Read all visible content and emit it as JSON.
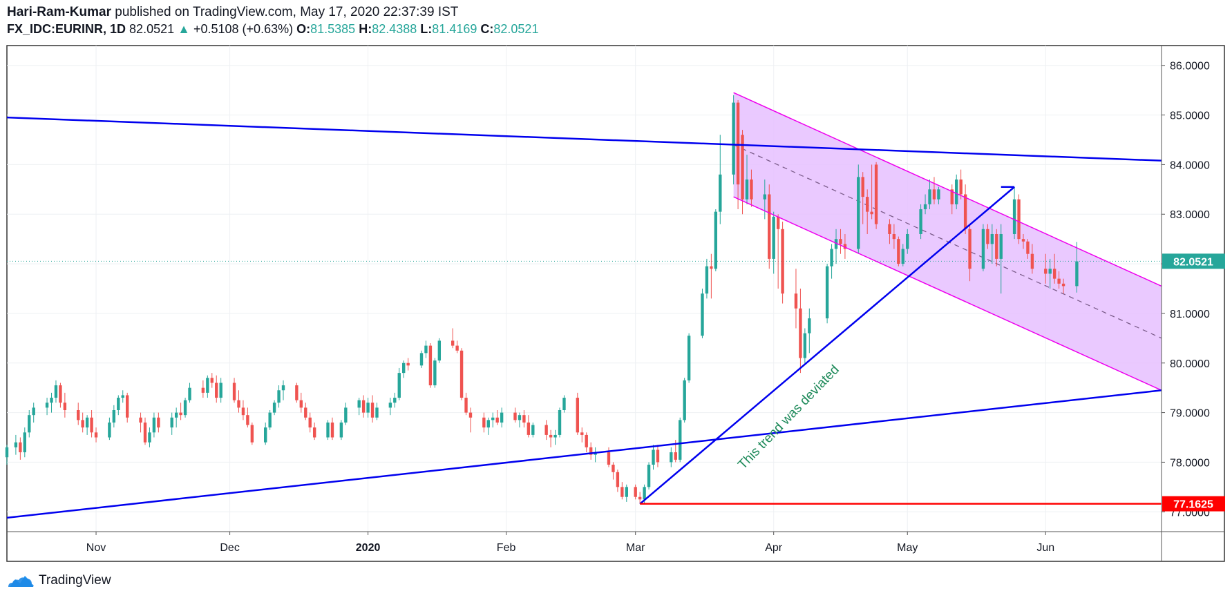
{
  "header": {
    "author": "Hari-Ram-Kumar",
    "published": " published on TradingView.com, May 17, 2020 22:37:39 IST",
    "symbol": "FX_IDC:EURINR, 1D",
    "last": "82.0521",
    "change": "+0.5108 (+0.63%)",
    "o_label": "O:",
    "o_value": "81.5385",
    "h_label": "H:",
    "h_value": "82.4388",
    "l_label": "L:",
    "l_value": "81.4169",
    "c_label": "C:",
    "c_value": "82.0521"
  },
  "footer": {
    "brand": "TradingView",
    "logo_icon": "tradingview-cloud-icon"
  },
  "colors": {
    "up": "#26a69a",
    "down": "#ef5350",
    "trendline": "#0000ee",
    "channel": "#ee00ee",
    "channel_fill": "#e6c0ff",
    "support": "#ff0000",
    "annotation": "#1e8a5a"
  },
  "chart_data": {
    "type": "candlestick",
    "y_axis": {
      "min": 76.6,
      "max": 86.4,
      "ticks": [
        "86.0000",
        "85.0000",
        "84.0000",
        "83.0000",
        "82.0000",
        "81.0000",
        "80.0000",
        "79.0000",
        "78.0000",
        "77.0000"
      ]
    },
    "x_axis": {
      "start": "2019-10-12",
      "end": "2020-06-27",
      "ticks": [
        {
          "label": "Nov",
          "date": "2019-11-01"
        },
        {
          "label": "Dec",
          "date": "2019-12-01"
        },
        {
          "label": "2020",
          "date": "2020-01-01",
          "bold": true
        },
        {
          "label": "Feb",
          "date": "2020-02-01"
        },
        {
          "label": "Mar",
          "date": "2020-03-01"
        },
        {
          "label": "Apr",
          "date": "2020-04-01"
        },
        {
          "label": "May",
          "date": "2020-05-01"
        },
        {
          "label": "Jun",
          "date": "2020-06-01"
        }
      ]
    },
    "price_labels": [
      {
        "value": 82.0521,
        "text": "82.0521",
        "color": "#26a69a"
      },
      {
        "value": 77.1625,
        "text": "77.1625",
        "color": "#ff0000"
      }
    ],
    "candles": [
      [
        "2019-10-12",
        78.1,
        78.35,
        77.95,
        78.3
      ],
      [
        "2019-10-14",
        78.3,
        78.55,
        78.15,
        78.4
      ],
      [
        "2019-10-15",
        78.4,
        78.5,
        78.05,
        78.2
      ],
      [
        "2019-10-16",
        78.2,
        78.7,
        78.1,
        78.6
      ],
      [
        "2019-10-17",
        78.6,
        79.05,
        78.5,
        78.95
      ],
      [
        "2019-10-18",
        78.95,
        79.2,
        78.8,
        79.1
      ],
      [
        "2019-10-21",
        79.1,
        79.3,
        78.95,
        79.2
      ],
      [
        "2019-10-22",
        79.2,
        79.4,
        79.0,
        79.3
      ],
      [
        "2019-10-23",
        79.3,
        79.65,
        79.2,
        79.55
      ],
      [
        "2019-10-24",
        79.55,
        79.6,
        79.1,
        79.2
      ],
      [
        "2019-10-25",
        79.2,
        79.4,
        78.9,
        79.05
      ],
      [
        "2019-10-28",
        79.05,
        79.2,
        78.75,
        78.85
      ],
      [
        "2019-10-29",
        78.85,
        79.0,
        78.6,
        78.7
      ],
      [
        "2019-10-30",
        78.7,
        78.95,
        78.55,
        78.9
      ],
      [
        "2019-10-31",
        78.9,
        79.05,
        78.5,
        78.6
      ],
      [
        "2019-11-01",
        78.6,
        78.7,
        78.4,
        78.5
      ],
      [
        "2019-11-04",
        78.5,
        78.9,
        78.45,
        78.8
      ],
      [
        "2019-11-05",
        78.8,
        79.15,
        78.7,
        79.05
      ],
      [
        "2019-11-06",
        79.05,
        79.35,
        78.95,
        79.3
      ],
      [
        "2019-11-07",
        79.3,
        79.45,
        79.2,
        79.35
      ],
      [
        "2019-11-08",
        79.35,
        79.4,
        78.8,
        78.9
      ],
      [
        "2019-11-11",
        78.9,
        79.0,
        78.6,
        78.8
      ],
      [
        "2019-11-12",
        78.8,
        78.9,
        78.35,
        78.4
      ],
      [
        "2019-11-13",
        78.4,
        78.7,
        78.3,
        78.6
      ],
      [
        "2019-11-14",
        78.6,
        79.0,
        78.5,
        78.9
      ],
      [
        "2019-11-15",
        78.9,
        79.0,
        78.6,
        78.7
      ],
      [
        "2019-11-18",
        78.7,
        79.0,
        78.55,
        78.9
      ],
      [
        "2019-11-19",
        78.9,
        79.1,
        78.7,
        79.0
      ],
      [
        "2019-11-20",
        79.0,
        79.2,
        78.85,
        78.95
      ],
      [
        "2019-11-21",
        78.95,
        79.3,
        78.9,
        79.25
      ],
      [
        "2019-11-22",
        79.25,
        79.6,
        79.2,
        79.5
      ],
      [
        "2019-11-25",
        79.5,
        79.65,
        79.3,
        79.4
      ],
      [
        "2019-11-26",
        79.4,
        79.75,
        79.3,
        79.7
      ],
      [
        "2019-11-27",
        79.7,
        79.8,
        79.5,
        79.6
      ],
      [
        "2019-11-28",
        79.6,
        79.75,
        79.2,
        79.3
      ],
      [
        "2019-11-29",
        79.3,
        79.7,
        79.2,
        79.6
      ],
      [
        "2019-12-02",
        79.6,
        79.7,
        79.2,
        79.25
      ],
      [
        "2019-12-03",
        79.25,
        79.45,
        79.0,
        79.1
      ],
      [
        "2019-12-04",
        79.1,
        79.25,
        78.85,
        78.95
      ],
      [
        "2019-12-05",
        78.95,
        79.1,
        78.7,
        78.75
      ],
      [
        "2019-12-06",
        78.75,
        78.8,
        78.35,
        78.4
      ],
      [
        "2019-12-09",
        78.4,
        78.8,
        78.35,
        78.7
      ],
      [
        "2019-12-10",
        78.7,
        79.05,
        78.65,
        79.0
      ],
      [
        "2019-12-11",
        79.0,
        79.25,
        78.95,
        79.2
      ],
      [
        "2019-12-12",
        79.2,
        79.55,
        79.1,
        79.45
      ],
      [
        "2019-12-13",
        79.45,
        79.65,
        79.25,
        79.55
      ],
      [
        "2019-12-16",
        79.55,
        79.6,
        79.2,
        79.25
      ],
      [
        "2019-12-17",
        79.25,
        79.4,
        79.0,
        79.1
      ],
      [
        "2019-12-18",
        79.1,
        79.2,
        78.85,
        78.9
      ],
      [
        "2019-12-19",
        78.9,
        79.0,
        78.6,
        78.7
      ],
      [
        "2019-12-20",
        78.7,
        78.8,
        78.45,
        78.5
      ],
      [
        "2019-12-23",
        78.5,
        78.85,
        78.45,
        78.8
      ],
      [
        "2019-12-24",
        78.8,
        78.9,
        78.45,
        78.5
      ],
      [
        "2019-12-26",
        78.5,
        78.85,
        78.45,
        78.8
      ],
      [
        "2019-12-27",
        78.8,
        79.2,
        78.75,
        79.1
      ],
      [
        "2019-12-30",
        79.1,
        79.3,
        78.95,
        79.25
      ],
      [
        "2019-12-31",
        79.25,
        79.35,
        78.9,
        79.0
      ],
      [
        "2020-01-01",
        79.0,
        79.3,
        78.9,
        79.2
      ],
      [
        "2020-01-02",
        79.2,
        79.35,
        78.8,
        78.9
      ],
      [
        "2020-01-03",
        78.9,
        79.2,
        78.85,
        79.1
      ],
      [
        "2020-01-06",
        79.1,
        79.3,
        78.95,
        79.2
      ],
      [
        "2020-01-07",
        79.2,
        79.4,
        79.1,
        79.3
      ],
      [
        "2020-01-08",
        79.3,
        79.9,
        79.25,
        79.8
      ],
      [
        "2020-01-09",
        79.8,
        80.05,
        79.7,
        80.0
      ],
      [
        "2020-01-10",
        80.0,
        80.1,
        79.85,
        79.95
      ],
      [
        "2020-01-13",
        79.95,
        80.25,
        79.9,
        80.2
      ],
      [
        "2020-01-14",
        80.2,
        80.45,
        80.1,
        80.35
      ],
      [
        "2020-01-15",
        80.35,
        80.4,
        79.5,
        79.55
      ],
      [
        "2020-01-16",
        79.55,
        80.1,
        79.5,
        80.05
      ],
      [
        "2020-01-17",
        80.05,
        80.5,
        80.0,
        80.45
      ],
      [
        "2020-01-20",
        80.45,
        80.7,
        80.3,
        80.35
      ],
      [
        "2020-01-21",
        80.35,
        80.45,
        80.2,
        80.25
      ],
      [
        "2020-01-22",
        80.25,
        80.3,
        79.25,
        79.3
      ],
      [
        "2020-01-23",
        79.3,
        79.4,
        78.95,
        79.0
      ],
      [
        "2020-01-24",
        79.0,
        79.1,
        78.6,
        78.9
      ],
      [
        "2020-01-27",
        78.9,
        79.0,
        78.6,
        78.7
      ],
      [
        "2020-01-28",
        78.7,
        78.9,
        78.55,
        78.85
      ],
      [
        "2020-01-29",
        78.85,
        79.0,
        78.7,
        78.9
      ],
      [
        "2020-01-30",
        78.9,
        79.05,
        78.75,
        78.8
      ],
      [
        "2020-01-31",
        78.8,
        79.1,
        78.7,
        79.0
      ],
      [
        "2020-02-03",
        79.0,
        79.1,
        78.8,
        78.85
      ],
      [
        "2020-02-04",
        78.85,
        79.0,
        78.7,
        78.95
      ],
      [
        "2020-02-05",
        78.95,
        79.05,
        78.7,
        78.8
      ],
      [
        "2020-02-06",
        78.8,
        78.95,
        78.5,
        78.55
      ],
      [
        "2020-02-07",
        78.55,
        78.8,
        78.5,
        78.75
      ],
      [
        "2020-02-10",
        78.75,
        78.85,
        78.45,
        78.55
      ],
      [
        "2020-02-11",
        78.55,
        78.65,
        78.3,
        78.5
      ],
      [
        "2020-02-12",
        78.5,
        78.65,
        78.35,
        78.55
      ],
      [
        "2020-02-13",
        78.55,
        79.1,
        78.5,
        79.05
      ],
      [
        "2020-02-14",
        79.05,
        79.35,
        79.0,
        79.3
      ],
      [
        "2020-02-17",
        79.3,
        79.4,
        78.55,
        78.6
      ],
      [
        "2020-02-18",
        78.6,
        78.7,
        78.4,
        78.55
      ],
      [
        "2020-02-19",
        78.55,
        78.6,
        78.2,
        78.3
      ],
      [
        "2020-02-20",
        78.3,
        78.4,
        78.05,
        78.15
      ],
      [
        "2020-02-21",
        78.15,
        78.3,
        78.0,
        78.2
      ],
      [
        "2020-02-24",
        78.2,
        78.3,
        77.9,
        77.95
      ],
      [
        "2020-02-25",
        77.95,
        78.0,
        77.65,
        77.8
      ],
      [
        "2020-02-26",
        77.8,
        77.85,
        77.4,
        77.5
      ],
      [
        "2020-02-27",
        77.5,
        77.6,
        77.25,
        77.3
      ],
      [
        "2020-02-28",
        77.3,
        77.55,
        77.2,
        77.5
      ],
      [
        "2020-03-01",
        77.5,
        77.55,
        77.25,
        77.3
      ],
      [
        "2020-03-02",
        77.3,
        77.4,
        77.16,
        77.25
      ],
      [
        "2020-03-03",
        77.25,
        77.55,
        77.16,
        77.5
      ],
      [
        "2020-03-04",
        77.5,
        78.0,
        77.45,
        77.95
      ],
      [
        "2020-03-05",
        77.95,
        78.35,
        77.85,
        78.25
      ],
      [
        "2020-03-06",
        78.25,
        78.35,
        77.9,
        78.0
      ],
      [
        "2020-03-09",
        78.0,
        78.3,
        77.9,
        78.2
      ],
      [
        "2020-03-10",
        78.2,
        78.45,
        78.0,
        78.05
      ],
      [
        "2020-03-11",
        78.05,
        78.9,
        78.0,
        78.85
      ],
      [
        "2020-03-12",
        78.85,
        79.7,
        78.8,
        79.65
      ],
      [
        "2020-03-13",
        79.65,
        80.6,
        79.6,
        80.55
      ],
      [
        "2020-03-16",
        80.55,
        81.5,
        80.5,
        81.4
      ],
      [
        "2020-03-17",
        81.4,
        82.1,
        81.3,
        81.95
      ],
      [
        "2020-03-18",
        81.95,
        82.2,
        81.3,
        81.9
      ],
      [
        "2020-03-19",
        81.9,
        83.1,
        81.85,
        83.05
      ],
      [
        "2020-03-20",
        83.05,
        84.6,
        82.8,
        83.8
      ],
      [
        "2020-03-23",
        83.8,
        85.4,
        83.6,
        85.25
      ],
      [
        "2020-03-24",
        85.25,
        85.3,
        83.1,
        83.6
      ],
      [
        "2020-03-25",
        84.6,
        84.7,
        83.0,
        83.3
      ],
      [
        "2020-03-26",
        83.3,
        84.2,
        83.2,
        83.7
      ],
      [
        "2020-03-27",
        83.7,
        83.9,
        83.15,
        83.3
      ],
      [
        "2020-03-30",
        83.3,
        83.7,
        82.9,
        83.4
      ],
      [
        "2020-03-31",
        83.4,
        83.6,
        81.9,
        82.1
      ],
      [
        "2020-04-01",
        82.1,
        83.05,
        81.8,
        82.95
      ],
      [
        "2020-04-02",
        82.95,
        83.0,
        81.5,
        82.7
      ],
      [
        "2020-04-03",
        82.7,
        82.85,
        81.2,
        81.4
      ],
      [
        "2020-04-06",
        81.4,
        81.9,
        80.7,
        81.1
      ],
      [
        "2020-04-07",
        81.1,
        81.5,
        79.8,
        80.1
      ],
      [
        "2020-04-08",
        80.1,
        80.7,
        80.0,
        80.6
      ],
      [
        "2020-04-09",
        80.6,
        81.1,
        80.2,
        80.9
      ],
      [
        "2020-04-13",
        80.9,
        82.0,
        80.8,
        81.95
      ],
      [
        "2020-04-14",
        81.95,
        82.4,
        81.7,
        82.3
      ],
      [
        "2020-04-15",
        82.3,
        82.7,
        82.0,
        82.5
      ],
      [
        "2020-04-16",
        82.5,
        82.7,
        82.2,
        82.4
      ],
      [
        "2020-04-17",
        82.4,
        82.6,
        82.1,
        82.3
      ],
      [
        "2020-04-20",
        82.3,
        84.0,
        82.2,
        83.75
      ],
      [
        "2020-04-21",
        83.75,
        83.85,
        82.8,
        83.35
      ],
      [
        "2020-04-22",
        83.35,
        83.5,
        82.6,
        83.05
      ],
      [
        "2020-04-23",
        83.05,
        84.0,
        82.9,
        83.0
      ],
      [
        "2020-04-24",
        84.0,
        84.05,
        82.7,
        82.8
      ],
      [
        "2020-04-27",
        82.8,
        82.9,
        82.4,
        82.6
      ],
      [
        "2020-04-28",
        82.6,
        82.8,
        82.3,
        82.5
      ],
      [
        "2020-04-29",
        82.5,
        82.55,
        81.95,
        82.0
      ],
      [
        "2020-04-30",
        82.0,
        82.4,
        81.95,
        82.3
      ],
      [
        "2020-05-01",
        82.3,
        82.7,
        82.2,
        82.6
      ],
      [
        "2020-05-04",
        82.6,
        83.2,
        82.5,
        83.1
      ],
      [
        "2020-05-05",
        83.1,
        83.4,
        83.0,
        83.2
      ],
      [
        "2020-05-06",
        83.2,
        83.7,
        83.1,
        83.5
      ],
      [
        "2020-05-07",
        83.5,
        83.75,
        83.2,
        83.3
      ],
      [
        "2020-05-08",
        83.3,
        83.55,
        83.2,
        83.5
      ],
      [
        "2020-05-11",
        83.5,
        83.6,
        83.0,
        83.2
      ],
      [
        "2020-05-12",
        83.2,
        83.8,
        83.1,
        83.7
      ],
      [
        "2020-05-13",
        83.7,
        83.9,
        83.3,
        83.4
      ],
      [
        "2020-05-14",
        83.4,
        83.6,
        82.6,
        82.7
      ],
      [
        "2020-05-15",
        82.7,
        82.8,
        81.65,
        81.9
      ],
      [
        "2020-05-18",
        81.9,
        82.8,
        81.85,
        82.7
      ],
      [
        "2020-05-19",
        82.7,
        82.8,
        82.3,
        82.4
      ],
      [
        "2020-05-20",
        82.4,
        82.8,
        82.0,
        82.6
      ],
      [
        "2020-05-21",
        82.6,
        82.7,
        81.95,
        82.1
      ],
      [
        "2020-05-22",
        82.1,
        82.8,
        81.4,
        82.6
      ],
      [
        "2020-05-25",
        82.6,
        83.55,
        82.5,
        83.3
      ],
      [
        "2020-05-26",
        83.3,
        83.4,
        82.4,
        82.5
      ],
      [
        "2020-05-27",
        82.5,
        82.6,
        82.3,
        82.45
      ],
      [
        "2020-05-28",
        82.45,
        82.5,
        82.1,
        82.2
      ],
      [
        "2020-05-29",
        82.2,
        82.4,
        81.8,
        81.9
      ],
      [
        "2020-06-01",
        81.9,
        82.2,
        81.6,
        81.8
      ],
      [
        "2020-06-02",
        81.8,
        82.1,
        81.5,
        81.9
      ],
      [
        "2020-06-03",
        81.9,
        82.2,
        81.6,
        81.7
      ],
      [
        "2020-06-04",
        81.7,
        81.85,
        81.5,
        81.6
      ],
      [
        "2020-06-05",
        81.6,
        81.7,
        81.4,
        81.55
      ],
      [
        "2020-06-08",
        81.55,
        82.44,
        81.42,
        82.05
      ]
    ],
    "drawings": {
      "resistance_line": {
        "from": [
          "2019-10-12",
          84.95
        ],
        "to": [
          "2020-06-27",
          84.08
        ]
      },
      "support_line": {
        "from": [
          "2019-10-12",
          76.88
        ],
        "to": [
          "2020-06-27",
          79.45
        ]
      },
      "uptrend_line": {
        "from": [
          "2020-03-02",
          77.16
        ],
        "to": [
          "2020-05-25",
          83.55
        ]
      },
      "uptrend_cap": {
        "from": [
          "2020-05-22",
          83.55
        ],
        "to": [
          "2020-05-25",
          83.55
        ]
      },
      "horizontal_support": {
        "from": [
          "2020-03-02",
          77.1625
        ],
        "to": [
          "2020-06-27",
          77.1625
        ]
      },
      "channel_upper": {
        "from": [
          "2020-03-23",
          85.45
        ],
        "to": [
          "2020-06-27",
          81.55
        ]
      },
      "channel_lower": {
        "from": [
          "2020-03-23",
          83.35
        ],
        "to": [
          "2020-06-27",
          79.45
        ]
      },
      "channel_mid": {
        "from": [
          "2020-03-23",
          84.4
        ],
        "to": [
          "2020-06-27",
          80.5
        ]
      },
      "annotation": {
        "text": "This trend was deviated",
        "at": [
          "2020-04-05",
          78.85
        ],
        "angle": -46
      }
    }
  }
}
